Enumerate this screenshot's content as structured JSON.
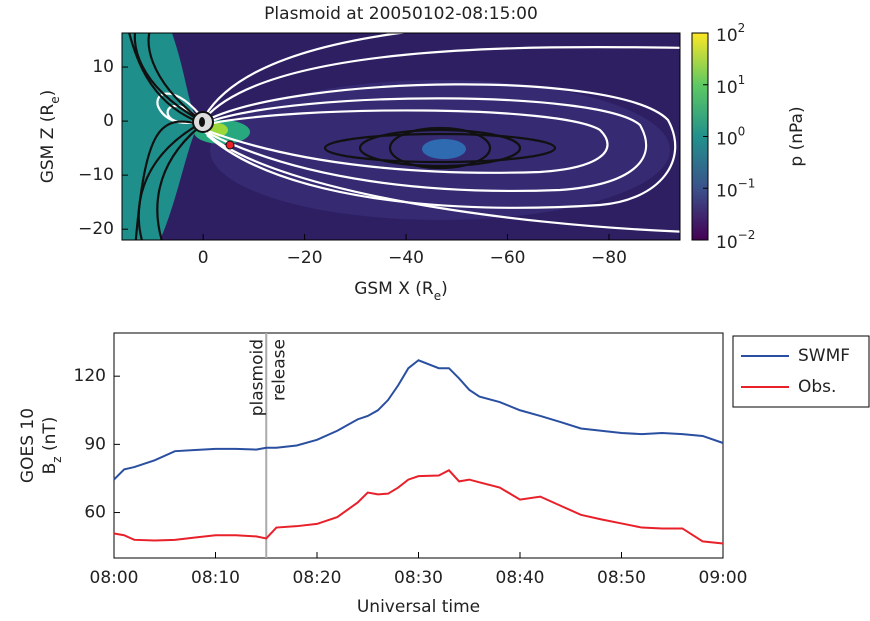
{
  "chart_data": [
    {
      "type": "heatmap",
      "title": "Plasmoid at 20050102-08:15:00",
      "x_label": {
        "text": "GSM X (R",
        "sub": "e",
        "end": ")"
      },
      "y_label": {
        "text": "GSM Z (R",
        "sub": "e",
        "end": ")"
      },
      "xlim": [
        16,
        -94
      ],
      "xticks": [
        0,
        {
          "value": -20,
          "label": "−20"
        },
        {
          "value": -40,
          "label": "−40"
        },
        {
          "value": -60,
          "label": "−60"
        },
        {
          "value": -80,
          "label": "−80"
        }
      ],
      "ylim": [
        -22,
        16.3
      ],
      "yticks": [
        {
          "value": -20,
          "label": "−20"
        },
        {
          "value": -10,
          "label": "−10"
        },
        0,
        10
      ],
      "colorbar": {
        "label": "p (nPa)",
        "scale": "log",
        "colormap": "viridis",
        "lim": [
          0.01,
          100
        ],
        "ticks": [
          {
            "value": 0.01,
            "label": "10",
            "exponent": "−2"
          },
          {
            "value": 0.1,
            "label": "10",
            "exponent": "−1"
          },
          {
            "value": 1,
            "label": "10",
            "exponent": "0"
          },
          {
            "value": 10,
            "label": "10",
            "exponent": "1"
          },
          {
            "value": 100,
            "label": "10",
            "exponent": "2"
          }
        ]
      }
    },
    {
      "type": "line",
      "x_label": "Universal time",
      "y_label": {
        "line1": "GOES 10",
        "text": "B",
        "sub": "z",
        "end": " (nT)"
      },
      "x": [
        "08:00",
        "08:01",
        "08:02",
        "08:04",
        "08:06",
        "08:08",
        "08:10",
        "08:12",
        "08:14",
        "08:15",
        "08:16",
        "08:18",
        "08:20",
        "08:22",
        "08:24",
        "08:25",
        "08:26",
        "08:27",
        "08:28",
        "08:29",
        "08:30",
        "08:32",
        "08:33",
        "08:34",
        "08:35",
        "08:36",
        "08:38",
        "08:40",
        "08:42",
        "08:44",
        "08:46",
        "08:48",
        "08:50",
        "08:52",
        "08:54",
        "08:56",
        "08:58",
        "09:00"
      ],
      "xlim": [
        "08:00",
        "09:00"
      ],
      "xticks": [
        "08:00",
        "08:10",
        "08:20",
        "08:30",
        "08:40",
        "08:50",
        "09:00"
      ],
      "ylim": [
        40,
        139
      ],
      "yticks": [
        60,
        90,
        120
      ],
      "legend": "outside-upper-right",
      "series": [
        {
          "name": "SWMF",
          "color": "#2a4fa0",
          "values": [
            74.5,
            79,
            80,
            83,
            87,
            87.5,
            88,
            88,
            87.7,
            88.5,
            88.5,
            89.5,
            92,
            96,
            101,
            102.5,
            105,
            109.5,
            116,
            123.5,
            127,
            123.5,
            123.5,
            119,
            114,
            111,
            108.6,
            105,
            102.5,
            99.8,
            97,
            96,
            95,
            94.5,
            95,
            94.5,
            93.7,
            90.6
          ]
        },
        {
          "name": "Obs.",
          "color": "#e8202a",
          "values": [
            50.8,
            50,
            48,
            47.7,
            48,
            49,
            50,
            50,
            49.5,
            48.6,
            53.4,
            54,
            55,
            58,
            64.4,
            68.8,
            68,
            68.3,
            71,
            74.5,
            76,
            76.3,
            78.6,
            73.7,
            74.5,
            73.3,
            71,
            65.7,
            67,
            63,
            59,
            57,
            55.2,
            53.4,
            53,
            53,
            47.3,
            46.4
          ]
        }
      ],
      "vline": {
        "x": "08:15",
        "color": "#aaaaaa",
        "label": [
          "plasmoid",
          "release"
        ]
      }
    }
  ]
}
